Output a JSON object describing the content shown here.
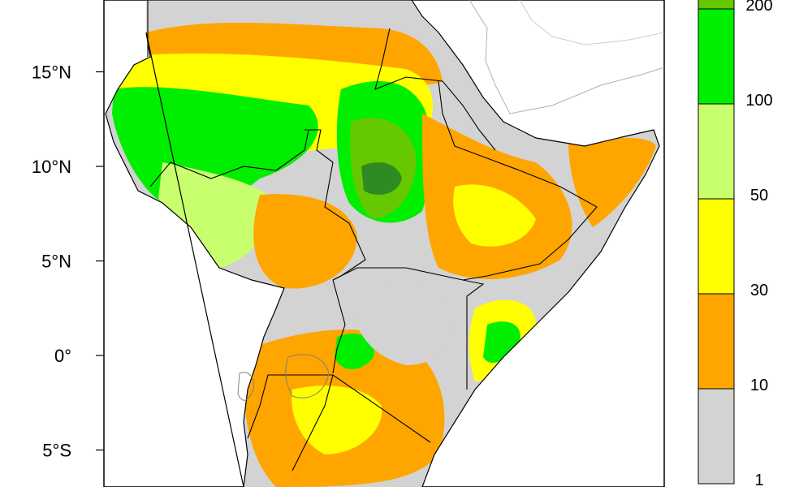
{
  "map": {
    "lat_labels": [
      {
        "lat": 15,
        "label": "15°N"
      },
      {
        "lat": 10,
        "label": "10°N"
      },
      {
        "lat": 5,
        "label": "5°N"
      },
      {
        "lat": 0,
        "label": "0°"
      },
      {
        "lat": -5,
        "label": "5°S"
      }
    ],
    "lat_range": [
      -7,
      19
    ],
    "colors": {
      "ocean": "#ffffff",
      "no_data_land": "#d3d3d3",
      "border": "#000000",
      "lake_outline": "#808080"
    }
  },
  "legend": {
    "bins": [
      {
        "label": "1",
        "color": "#d3d3d3"
      },
      {
        "label": "10",
        "color": "#ffa500"
      },
      {
        "label": "30",
        "color": "#ffff00"
      },
      {
        "label": "50",
        "color": "#c8ff6e"
      },
      {
        "label": "100",
        "color": "#00ee00"
      },
      {
        "label": "200",
        "color": "#66c800"
      },
      {
        "label": "",
        "color": "#2e8b22"
      }
    ]
  }
}
